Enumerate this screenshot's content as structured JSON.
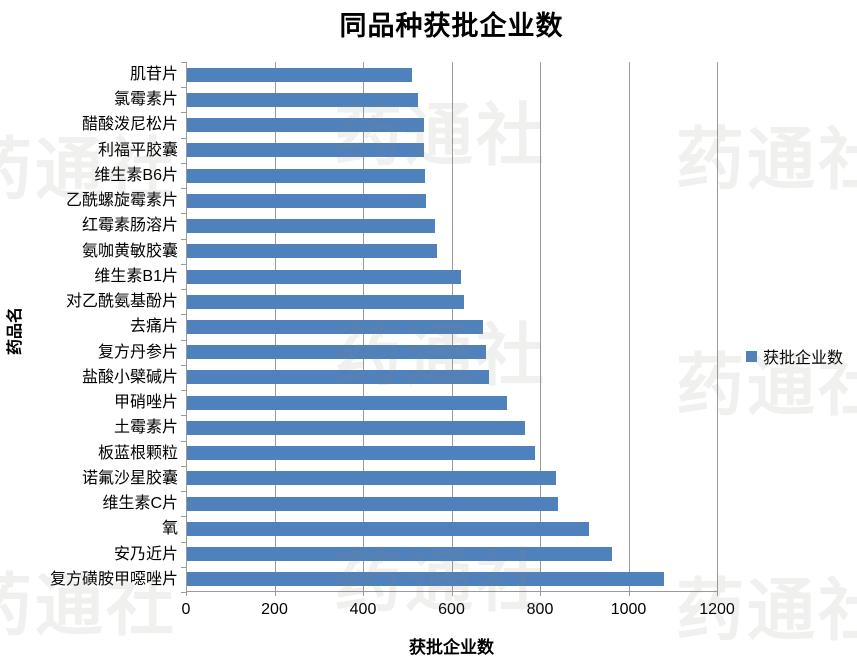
{
  "title": "同品种获批企业数",
  "watermark": {
    "text": "药通社"
  },
  "legend": {
    "label": "获批企业数",
    "color": "#4f81bd"
  },
  "chart_data": {
    "type": "bar",
    "orientation": "horizontal",
    "title": "同品种获批企业数",
    "xlabel": "获批企业数",
    "ylabel": "药品名",
    "xlim": [
      0,
      1200
    ],
    "xticks": [
      0,
      200,
      400,
      600,
      800,
      1000,
      1200
    ],
    "grid": true,
    "legend_position": "right",
    "bar_color": "#4f81bd",
    "categories": [
      "肌苷片",
      "氯霉素片",
      "醋酸泼尼松片",
      "利福平胶囊",
      "维生素B6片",
      "乙酰螺旋霉素片",
      "红霉素肠溶片",
      "氨咖黄敏胶囊",
      "维生素B1片",
      "对乙酰氨基酚片",
      "去痛片",
      "复方丹参片",
      "盐酸小檗碱片",
      "甲硝唑片",
      "土霉素片",
      "板蓝根颗粒",
      "诺氟沙星胶囊",
      "维生素C片",
      "氧",
      "安乃近片",
      "复方磺胺甲噁唑片"
    ],
    "values": [
      508,
      523,
      535,
      536,
      537,
      541,
      560,
      565,
      620,
      627,
      669,
      675,
      683,
      724,
      764,
      786,
      833,
      838,
      908,
      961,
      1078
    ]
  }
}
